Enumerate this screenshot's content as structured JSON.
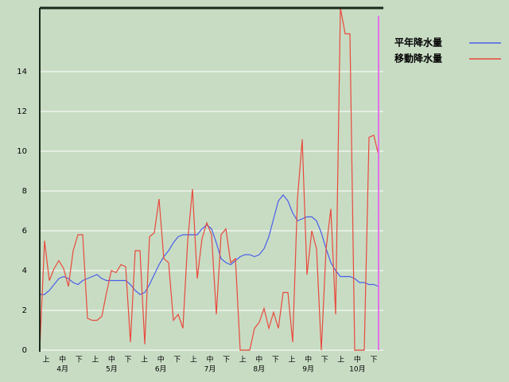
{
  "chart_data": {
    "type": "line",
    "ylim": [
      0,
      17.2
    ],
    "yticks": [
      0,
      2,
      4,
      6,
      8,
      10,
      12,
      14
    ],
    "grid": true,
    "legend": "top-right",
    "x_tick_labels": [
      "上",
      "中",
      "下",
      "上",
      "中",
      "下",
      "上",
      "中",
      "下",
      "上",
      "中",
      "下",
      "上",
      "中",
      "下",
      "上",
      "中",
      "下",
      "上",
      "中",
      "下"
    ],
    "x_group_labels": [
      "4月",
      "5月",
      "6月",
      "7月",
      "8月",
      "9月",
      "10月"
    ],
    "series": [
      {
        "name": "平年降水量",
        "color": "#4a5ee8",
        "values": [
          2.8,
          2.8,
          3.0,
          3.3,
          3.6,
          3.7,
          3.6,
          3.4,
          3.3,
          3.5,
          3.6,
          3.7,
          3.8,
          3.6,
          3.5,
          3.5,
          3.5,
          3.5,
          3.5,
          3.3,
          3.0,
          2.8,
          2.9,
          3.3,
          3.8,
          4.3,
          4.7,
          5.0,
          5.4,
          5.7,
          5.8,
          5.8,
          5.8,
          5.8,
          6.1,
          6.3,
          6.1,
          5.4,
          4.6,
          4.4,
          4.3,
          4.5,
          4.7,
          4.8,
          4.8,
          4.7,
          4.8,
          5.1,
          5.7,
          6.6,
          7.5,
          7.8,
          7.5,
          6.9,
          6.5,
          6.6,
          6.7,
          6.7,
          6.5,
          5.9,
          5.1,
          4.4,
          4.0,
          3.7,
          3.7,
          3.7,
          3.6,
          3.4,
          3.4,
          3.3,
          3.3,
          3.2
        ]
      },
      {
        "name": "移動降水量",
        "color": "#e84a3c",
        "values": [
          0,
          5.5,
          3.5,
          4.1,
          4.5,
          4.1,
          3.2,
          5.0,
          5.8,
          5.8,
          1.6,
          1.5,
          1.5,
          1.7,
          2.9,
          4.0,
          3.9,
          4.3,
          4.2,
          0.4,
          5.0,
          5.0,
          0.3,
          5.7,
          5.9,
          7.6,
          4.6,
          4.4,
          1.5,
          1.8,
          1.1,
          5.5,
          8.1,
          3.6,
          5.6,
          6.4,
          5.8,
          1.8,
          5.8,
          6.1,
          4.4,
          4.6,
          0,
          0,
          0,
          1.1,
          1.4,
          2.1,
          1.1,
          1.9,
          1.1,
          2.9,
          2.9,
          0.4,
          7.6,
          10.6,
          3.8,
          6.0,
          5.1,
          0,
          5.1,
          7.1,
          1.8,
          17.2,
          15.9,
          15.9,
          0,
          0,
          0,
          10.7,
          10.8,
          9.8
        ]
      }
    ]
  }
}
